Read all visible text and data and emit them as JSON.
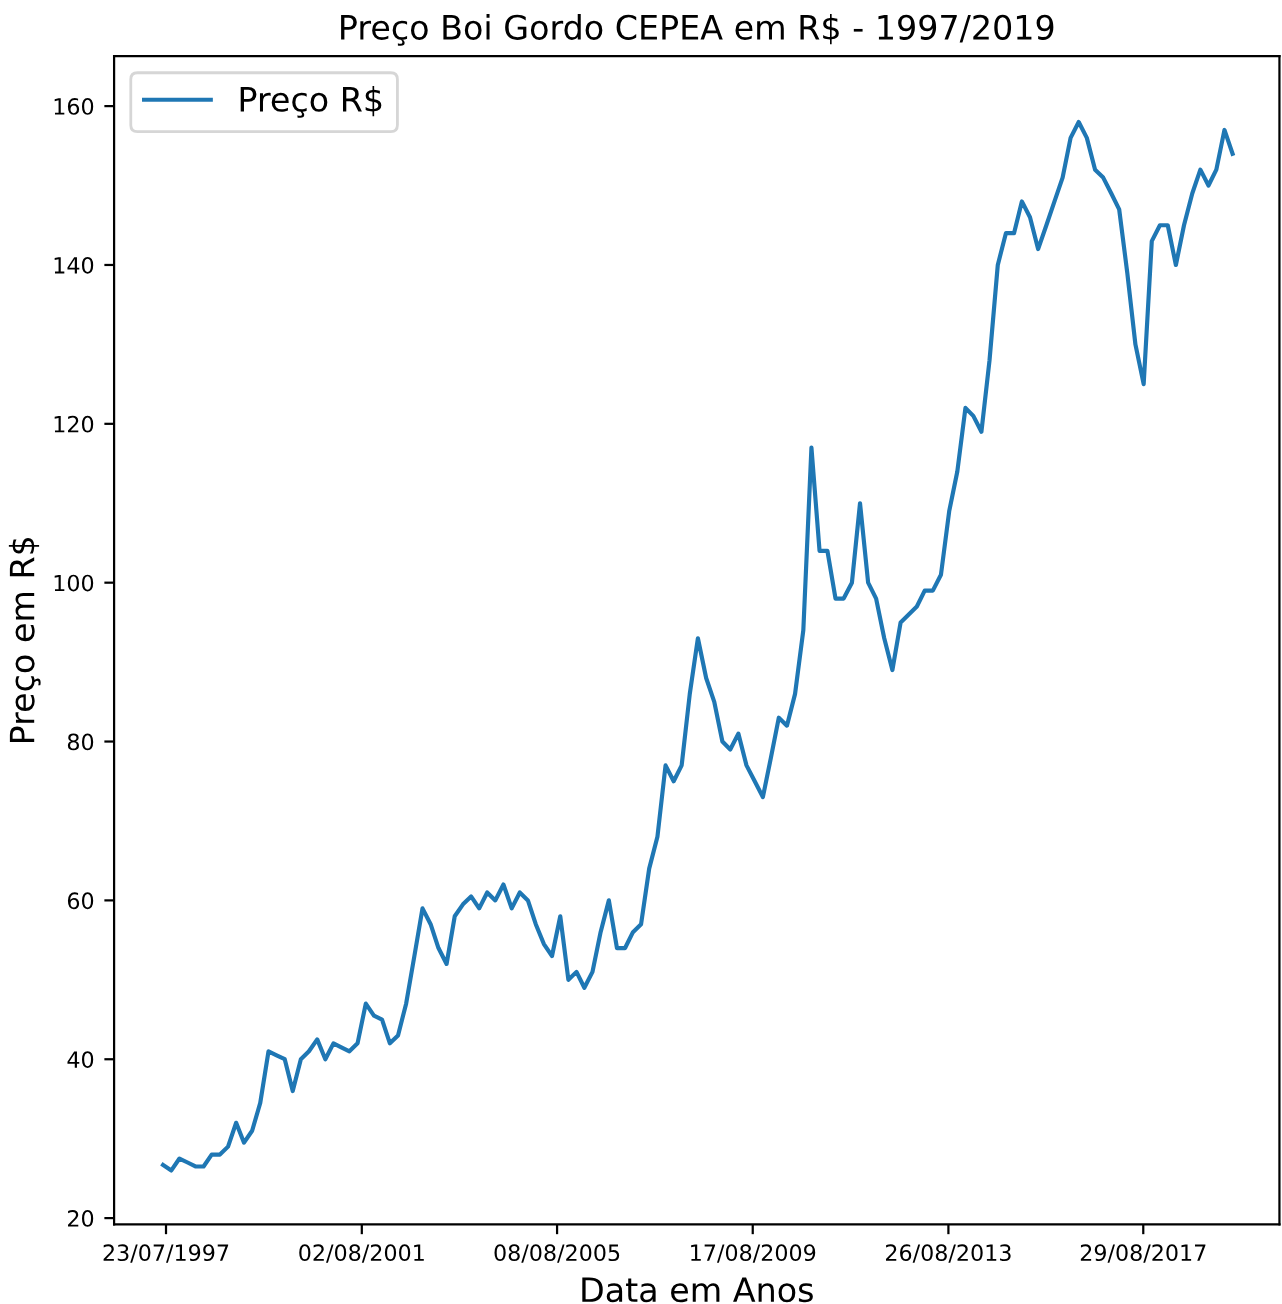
{
  "chart_data": {
    "type": "line",
    "title": "Preço Boi Gordo CEPEA em R$ - 1997/2019",
    "xlabel": "Data em Anos",
    "ylabel": "Preço em R$",
    "x": [
      "1997-07",
      "1997-09",
      "1997-11",
      "1998-01",
      "1998-03",
      "1998-05",
      "1998-07",
      "1998-09",
      "1998-11",
      "1999-01",
      "1999-03",
      "1999-05",
      "1999-07",
      "1999-09",
      "1999-11",
      "2000-01",
      "2000-03",
      "2000-05",
      "2000-07",
      "2000-09",
      "2000-11",
      "2001-01",
      "2001-03",
      "2001-05",
      "2001-07",
      "2001-09",
      "2001-11",
      "2002-01",
      "2002-03",
      "2002-05",
      "2002-07",
      "2002-09",
      "2002-11",
      "2003-01",
      "2003-03",
      "2003-05",
      "2003-07",
      "2003-09",
      "2003-11",
      "2004-01",
      "2004-03",
      "2004-05",
      "2004-07",
      "2004-09",
      "2004-11",
      "2005-01",
      "2005-03",
      "2005-05",
      "2005-07",
      "2005-09",
      "2005-11",
      "2006-01",
      "2006-03",
      "2006-05",
      "2006-07",
      "2006-09",
      "2006-11",
      "2007-01",
      "2007-03",
      "2007-05",
      "2007-07",
      "2007-09",
      "2007-11",
      "2008-01",
      "2008-03",
      "2008-05",
      "2008-07",
      "2008-09",
      "2008-11",
      "2009-01",
      "2009-03",
      "2009-05",
      "2009-07",
      "2009-09",
      "2009-11",
      "2010-01",
      "2010-03",
      "2010-05",
      "2010-07",
      "2010-09",
      "2010-11",
      "2011-01",
      "2011-03",
      "2011-05",
      "2011-07",
      "2011-09",
      "2011-11",
      "2012-01",
      "2012-03",
      "2012-05",
      "2012-07",
      "2012-09",
      "2012-11",
      "2013-01",
      "2013-03",
      "2013-05",
      "2013-07",
      "2013-09",
      "2013-11",
      "2014-01",
      "2014-03",
      "2014-05",
      "2014-07",
      "2014-09",
      "2014-11",
      "2015-01",
      "2015-03",
      "2015-05",
      "2015-07",
      "2015-09",
      "2015-11",
      "2016-01",
      "2016-03",
      "2016-05",
      "2016-07",
      "2016-09",
      "2016-11",
      "2017-01",
      "2017-03",
      "2017-05",
      "2017-07",
      "2017-09",
      "2017-11",
      "2018-01",
      "2018-03",
      "2018-05",
      "2018-07",
      "2018-09",
      "2018-11",
      "2019-01",
      "2019-03",
      "2019-05",
      "2019-07"
    ],
    "series": [
      {
        "name": "Preço R$",
        "color": "#1f77b4",
        "values": [
          26.7,
          26,
          27.5,
          27,
          26.5,
          26.5,
          28,
          28,
          29,
          32,
          29.5,
          31,
          34.5,
          41,
          40.5,
          40,
          36,
          40,
          41,
          42.5,
          40,
          42,
          41.5,
          41,
          42,
          47,
          45.5,
          45,
          42,
          43,
          47,
          53,
          59,
          57,
          54,
          52,
          58,
          59.5,
          60.5,
          59,
          61,
          60,
          62,
          59,
          61,
          60,
          57,
          54.5,
          53,
          58,
          50,
          51,
          49,
          51,
          56,
          60,
          54,
          54,
          56,
          57,
          64,
          68,
          77,
          75,
          77,
          86,
          93,
          88,
          85,
          80,
          79,
          81,
          77,
          75,
          73,
          78,
          83,
          82,
          86,
          94,
          117,
          104,
          104,
          98,
          98,
          100,
          110,
          100,
          98,
          93,
          89,
          95,
          96,
          97,
          99,
          99,
          101,
          109,
          114,
          122,
          121,
          119,
          128,
          140,
          144,
          144,
          148,
          146,
          142,
          145,
          148,
          151,
          156,
          158,
          156,
          152,
          151,
          149,
          147,
          139,
          130,
          125,
          143,
          145,
          145,
          140,
          145,
          149,
          152,
          150,
          152,
          157,
          154
        ]
      }
    ],
    "xlim": [
      "1996-06-28",
      "2020-06-17"
    ],
    "xticks": [
      {
        "value": "1997-07-23",
        "label": "23/07/1997"
      },
      {
        "value": "2001-08-02",
        "label": "02/08/2001"
      },
      {
        "value": "2005-08-08",
        "label": "08/08/2005"
      },
      {
        "value": "2009-08-17",
        "label": "17/08/2009"
      },
      {
        "value": "2013-08-26",
        "label": "26/08/2013"
      },
      {
        "value": "2017-08-29",
        "label": "29/08/2017"
      }
    ],
    "ylim": [
      19.2,
      166.3
    ],
    "yticks": [
      20,
      40,
      60,
      80,
      100,
      120,
      140,
      160
    ],
    "legend": "top left",
    "grid": false,
    "marker": "none",
    "line_style": "solid"
  }
}
